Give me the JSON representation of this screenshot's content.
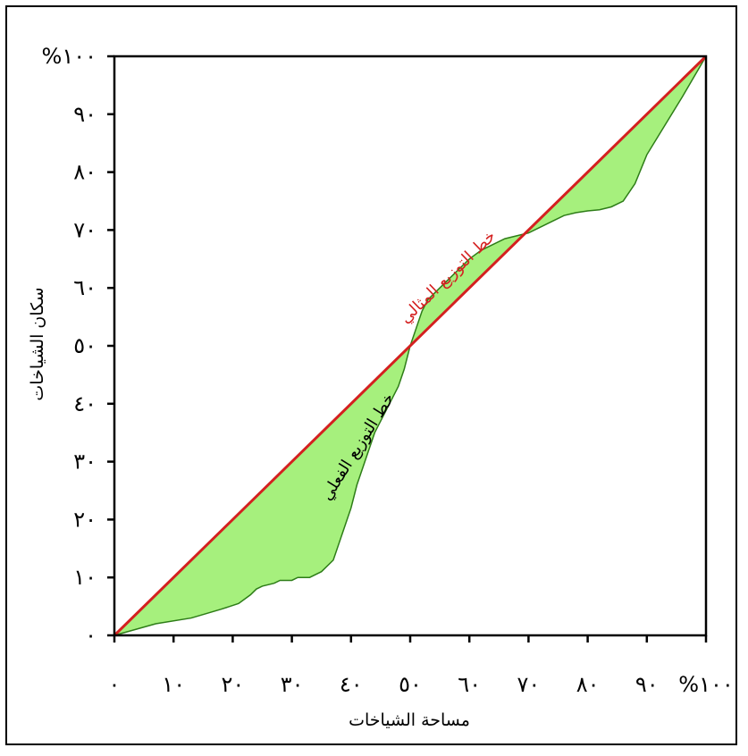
{
  "chart_data": {
    "type": "area",
    "xlabel": "مساحة الشياخات",
    "ylabel": "سكان الشياخات",
    "xlim": [
      0,
      100
    ],
    "ylim": [
      0,
      100
    ],
    "x_ticks": [
      {
        "value": 0,
        "label": "٠"
      },
      {
        "value": 10,
        "label": "١٠"
      },
      {
        "value": 20,
        "label": "٢٠"
      },
      {
        "value": 30,
        "label": "٣٠"
      },
      {
        "value": 40,
        "label": "٤٠"
      },
      {
        "value": 50,
        "label": "٥٠"
      },
      {
        "value": 60,
        "label": "٦٠"
      },
      {
        "value": 70,
        "label": "٧٠"
      },
      {
        "value": 80,
        "label": "٨٠"
      },
      {
        "value": 90,
        "label": "٩٠"
      },
      {
        "value": 100,
        "label": "%١٠٠"
      }
    ],
    "y_ticks": [
      {
        "value": 0,
        "label": "٠"
      },
      {
        "value": 10,
        "label": "١٠"
      },
      {
        "value": 20,
        "label": "٢٠"
      },
      {
        "value": 30,
        "label": "٣٠"
      },
      {
        "value": 40,
        "label": "٤٠"
      },
      {
        "value": 50,
        "label": "٥٠"
      },
      {
        "value": 60,
        "label": "٦٠"
      },
      {
        "value": 70,
        "label": "٧٠"
      },
      {
        "value": 80,
        "label": "٨٠"
      },
      {
        "value": 90,
        "label": "٩٠"
      },
      {
        "value": 100,
        "label": "%١٠٠"
      }
    ],
    "series": [
      {
        "name": "خط التوزيع المثالي",
        "color": "#d42020",
        "x": [
          0,
          100
        ],
        "y": [
          0,
          100
        ]
      },
      {
        "name": "خط التوزيع الفعلي",
        "color": "#2e7d18",
        "x": [
          0,
          7,
          13,
          18,
          21,
          23,
          24,
          25,
          27,
          28,
          30,
          31,
          33,
          35,
          37,
          38,
          39,
          40,
          41,
          42,
          43,
          44,
          46,
          48,
          49,
          50,
          51,
          52,
          53,
          54,
          56,
          58,
          60,
          62,
          64,
          66,
          68,
          70,
          72,
          74,
          76,
          78,
          80,
          82,
          84,
          86,
          88,
          90,
          93,
          96,
          100
        ],
        "y": [
          0,
          2.0,
          3.0,
          4.5,
          5.5,
          7.0,
          8.0,
          8.5,
          9.0,
          9.5,
          9.5,
          10.0,
          10.0,
          11.0,
          13.0,
          16.0,
          19.0,
          22.0,
          26.0,
          29.0,
          32.0,
          35.0,
          39.0,
          43.0,
          46.0,
          50.0,
          53.0,
          56.0,
          58.0,
          59.0,
          61.0,
          63.0,
          65.0,
          66.5,
          67.5,
          68.5,
          69.0,
          69.5,
          70.5,
          71.5,
          72.5,
          73.0,
          73.3,
          73.5,
          74.0,
          75.0,
          78.0,
          83.0,
          88.0,
          93.0,
          100.0
        ]
      }
    ],
    "fill_color": "#a6f07d",
    "grid": false
  },
  "annotations": {
    "ideal_line_label": "خط التوزيع المثالي",
    "actual_line_label": "خط التوزيع الفعلي"
  }
}
